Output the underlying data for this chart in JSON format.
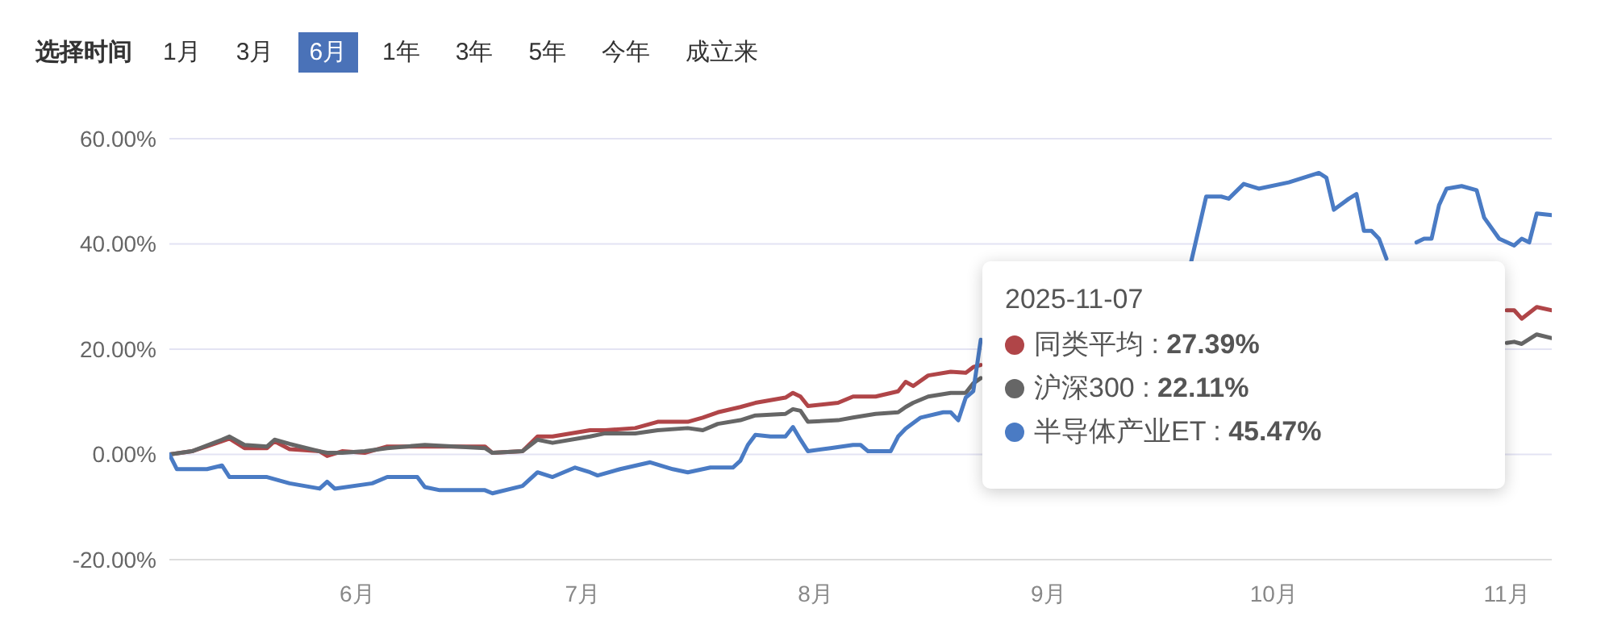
{
  "chart_data": {
    "type": "line",
    "annotations": [
      "选择时间",
      "1月",
      "3月",
      "6月",
      "1年",
      "3年",
      "5年",
      "今年",
      "成立来",
      "2025-11-07",
      "同类平均 : 27.39%",
      "沪深300 : 22.11%",
      "半导体产业ET : 45.47%"
    ],
    "x": [
      "2025-05-07",
      "2025-05-10",
      "2025-05-14",
      "2025-05-15",
      "2025-05-17",
      "2025-05-20",
      "2025-05-21",
      "2025-05-23",
      "2025-05-27",
      "2025-05-28",
      "2025-05-30",
      "2025-06-02",
      "2025-06-05",
      "2025-06-10",
      "2025-06-18",
      "2025-06-19",
      "2025-06-23",
      "2025-06-25",
      "2025-06-27",
      "2025-07-02",
      "2025-07-04",
      "2025-07-08",
      "2025-07-11",
      "2025-07-15",
      "2025-07-17",
      "2025-07-19",
      "2025-07-22",
      "2025-07-24",
      "2025-07-28",
      "2025-07-29",
      "2025-07-30",
      "2025-07-31",
      "2025-08-04",
      "2025-08-06",
      "2025-08-09",
      "2025-08-12",
      "2025-08-13",
      "2025-08-14",
      "2025-08-16",
      "2025-08-19",
      "2025-08-21",
      "2025-08-22",
      "2025-08-23",
      "2025-09-11",
      "2025-11-01",
      "2025-11-02",
      "2025-11-03",
      "2025-11-05",
      "2025-11-07"
    ],
    "series": [
      {
        "color": "#b04548",
        "values": [
          0,
          0.6,
          2.5,
          3,
          1.2,
          1.2,
          2.5,
          1,
          0.6,
          -0.3,
          0.6,
          0.3,
          1.5,
          1.5,
          1.5,
          0.3,
          0.6,
          3.4,
          3.4,
          4.6,
          4.6,
          5,
          6.2,
          6.2,
          7,
          8,
          9,
          9.8,
          10.8,
          11.7,
          11,
          9.2,
          9.8,
          11,
          11,
          12,
          13.8,
          13,
          15,
          15.7,
          15.5,
          16.6,
          17,
          null,
          27.4,
          27.4,
          25.8,
          28,
          27.39
        ]
      },
      {
        "color": "#666666",
        "values": [
          0,
          0.6,
          2.8,
          3.4,
          1.8,
          1.5,
          2.8,
          2,
          0.6,
          0.3,
          0.3,
          0.6,
          1.2,
          1.8,
          1.2,
          0.3,
          0.6,
          2.8,
          2.2,
          3.4,
          4,
          4,
          4.6,
          5,
          4.6,
          5.8,
          6.5,
          7.4,
          7.7,
          8.6,
          8.3,
          6.2,
          6.5,
          7,
          7.7,
          8,
          9,
          9.8,
          11,
          11.7,
          11.7,
          13.5,
          14.5,
          null,
          21.2,
          21.4,
          21,
          22.8,
          22.11
        ]
      },
      {
        "color": "#4a7bc4",
        "x": [
          "2025-05-07",
          "2025-05-08",
          "2025-05-12",
          "2025-05-14",
          "2025-05-15",
          "2025-05-20",
          "2025-05-23",
          "2025-05-27",
          "2025-05-28",
          "2025-05-29",
          "2025-06-03",
          "2025-06-05",
          "2025-06-09",
          "2025-06-10",
          "2025-06-12",
          "2025-06-18",
          "2025-06-19",
          "2025-06-23",
          "2025-06-25",
          "2025-06-27",
          "2025-06-30",
          "2025-07-02",
          "2025-07-03",
          "2025-07-06",
          "2025-07-10",
          "2025-07-13",
          "2025-07-15",
          "2025-07-18",
          "2025-07-21",
          "2025-07-22",
          "2025-07-23",
          "2025-07-24",
          "2025-07-26",
          "2025-07-28",
          "2025-07-29",
          "2025-07-30",
          "2025-07-31",
          "2025-08-03",
          "2025-08-06",
          "2025-08-07",
          "2025-08-08",
          "2025-08-11",
          "2025-08-12",
          "2025-08-13",
          "2025-08-15",
          "2025-08-18",
          "2025-08-19",
          "2025-08-20",
          "2025-08-21",
          "2025-08-22",
          "2025-08-23",
          "2025-09-10",
          "2025-09-20",
          "2025-09-22",
          "2025-09-24",
          "2025-09-25",
          "2025-09-27",
          "2025-09-29",
          "2025-10-03",
          "2025-10-07",
          "2025-10-08",
          "2025-10-09",
          "2025-10-11",
          "2025-10-12",
          "2025-10-13",
          "2025-10-14",
          "2025-10-15",
          "2025-10-16",
          "2025-10-19",
          "2025-10-20",
          "2025-10-21",
          "2025-10-22",
          "2025-10-23",
          "2025-10-24",
          "2025-10-26",
          "2025-10-28",
          "2025-10-29",
          "2025-10-31",
          "2025-11-02",
          "2025-11-03",
          "2025-11-04",
          "2025-11-05",
          "2025-11-07"
        ],
        "values": [
          0,
          -2.8,
          -2.8,
          -2.1,
          -4.3,
          -4.3,
          -5.5,
          -6.5,
          -5.2,
          -6.5,
          -5.5,
          -4.3,
          -4.3,
          -6.2,
          -6.8,
          -6.8,
          -7.4,
          -6,
          -3.4,
          -4.3,
          -2.5,
          -3.4,
          -4,
          -2.8,
          -1.5,
          -2.8,
          -3.4,
          -2.5,
          -2.5,
          -1.2,
          1.8,
          3.7,
          3.4,
          3.4,
          5.2,
          2.8,
          0.6,
          1.2,
          1.8,
          1.8,
          0.6,
          0.6,
          3.4,
          4.9,
          7,
          8,
          8,
          6.5,
          10.8,
          12,
          21.8,
          null,
          36.6,
          49,
          49,
          48.6,
          51.4,
          50.5,
          51.7,
          53.5,
          52.6,
          46.5,
          48.6,
          49.5,
          42.5,
          42.5,
          41,
          37.2,
          null,
          40.3,
          41,
          41,
          47.4,
          50.5,
          51,
          50.2,
          45,
          41,
          39.7,
          41,
          40.3,
          45.8,
          45.47
        ]
      }
    ],
    "xlim": [
      "2025-05-07",
      "2025-11-07"
    ],
    "xticks": [
      {
        "value": "2025-06-01",
        "label": "6月"
      },
      {
        "value": "2025-07-01",
        "label": "7月"
      },
      {
        "value": "2025-08-01",
        "label": "8月"
      },
      {
        "value": "2025-09-01",
        "label": "9月"
      },
      {
        "value": "2025-10-01",
        "label": "10月"
      },
      {
        "value": "2025-11-01",
        "label": "11月"
      }
    ],
    "ylim": [
      -20,
      60
    ],
    "yticks": [
      {
        "value": -20,
        "label": "-20.00%"
      },
      {
        "value": 0,
        "label": "0.00%"
      },
      {
        "value": 20,
        "label": "20.00%"
      },
      {
        "value": 40,
        "label": "40.00%"
      },
      {
        "value": 60,
        "label": "60.00%"
      }
    ],
    "grid": "y",
    "marker": "none",
    "line_style": "solid"
  }
}
